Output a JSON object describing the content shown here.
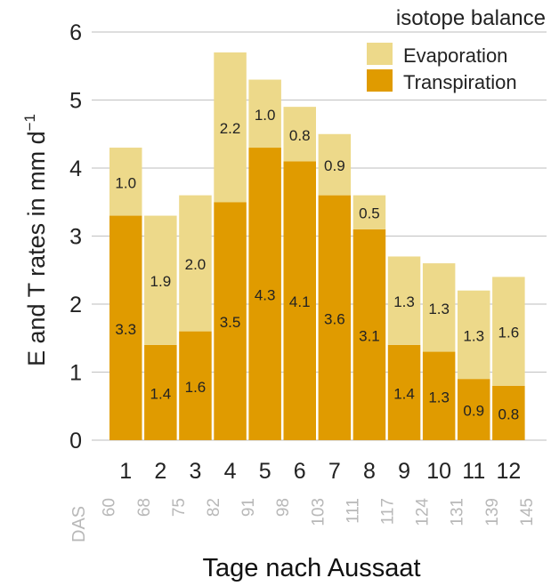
{
  "chart_data": {
    "type": "bar",
    "stacked": true,
    "legend_title": "isotope balance",
    "legend_placement": "top-right",
    "ylabel": "E and T rates in mm d",
    "ylabel_superscript": "−1",
    "xlabel": "Tage nach Aussaat",
    "ylim": [
      0,
      6
    ],
    "yticks": [
      "0",
      "1",
      "2",
      "3",
      "4",
      "5",
      "6"
    ],
    "grid": "horizontal",
    "categories": [
      "1",
      "2",
      "3",
      "4",
      "5",
      "6",
      "7",
      "8",
      "9",
      "10",
      "11",
      "12"
    ],
    "das_label": "DAS",
    "das": [
      "60",
      "68",
      "75",
      "82",
      "91",
      "98",
      "103",
      "111",
      "117",
      "124",
      "131",
      "139",
      "145"
    ],
    "series": [
      {
        "name": "Transpiration",
        "color": "#E09B00",
        "values": [
          3.3,
          1.4,
          1.6,
          3.5,
          4.3,
          4.1,
          3.6,
          3.1,
          1.4,
          1.3,
          0.9,
          0.8
        ],
        "labels": [
          "3.3",
          "1.4",
          "1.6",
          "3.5",
          "4.3",
          "4.1",
          "3.6",
          "3.1",
          "1.4",
          "1.3",
          "0.9",
          "0.8"
        ]
      },
      {
        "name": "Evaporation",
        "color": "#EDD98A",
        "values": [
          1.0,
          1.9,
          2.0,
          2.2,
          1.0,
          0.8,
          0.9,
          0.5,
          1.3,
          1.3,
          1.3,
          1.6
        ],
        "labels": [
          "1.0",
          "1.9",
          "2.0",
          "2.2",
          "1.0",
          "0.8",
          "0.9",
          "0.5",
          "1.3",
          "1.3",
          "1.3",
          "1.6"
        ]
      }
    ]
  }
}
